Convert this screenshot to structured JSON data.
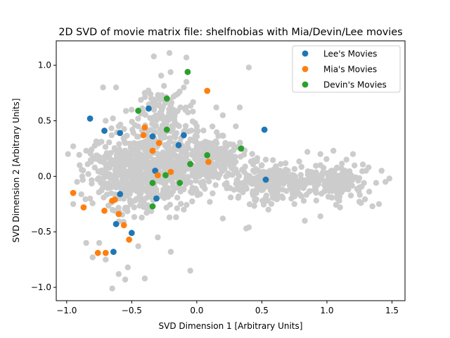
{
  "chart_data": {
    "type": "scatter",
    "title": "2D SVD of movie matrix file: shelfnobias with Mia/Devin/Lee movies",
    "xlabel": "SVD Dimension 1 [Arbitrary Units]",
    "ylabel": "SVD Dimension 2 [Arbitrary Units]",
    "xlim": [
      -1.08,
      1.6
    ],
    "ylim": [
      -1.12,
      1.22
    ],
    "xticks": [
      -1.0,
      -0.5,
      0.0,
      0.5,
      1.0,
      1.5
    ],
    "xtick_labels": [
      "−1.0",
      "−0.5",
      "0.0",
      "0.5",
      "1.0",
      "1.5"
    ],
    "yticks": [
      -1.0,
      -0.5,
      0.0,
      0.5,
      1.0
    ],
    "ytick_labels": [
      "−1.0",
      "−0.5",
      "0.0",
      "0.5",
      "1.0"
    ],
    "grid": false,
    "legend_position": "top-right",
    "background_series": {
      "color": "#cccccc",
      "count": 1500,
      "points": [
        [
          -0.33,
          1.08
        ],
        [
          -0.21,
          1.11
        ],
        [
          -0.08,
          1.07
        ],
        [
          -0.62,
          0.8
        ],
        [
          -0.72,
          0.8
        ],
        [
          -0.1,
          0.8
        ],
        [
          -0.08,
          0.85
        ],
        [
          -0.35,
          0.7
        ],
        [
          -0.95,
          0.27
        ],
        [
          -0.99,
          0.2
        ],
        [
          -0.85,
          0.23
        ],
        [
          0.4,
          0.98
        ],
        [
          0.33,
          0.62
        ],
        [
          0.2,
          0.55
        ],
        [
          0.15,
          0.62
        ],
        [
          0.85,
          0.22
        ],
        [
          0.95,
          0.2
        ],
        [
          1.05,
          0.23
        ],
        [
          1.2,
          0.2
        ],
        [
          1.3,
          0.05
        ],
        [
          1.42,
          0.05
        ],
        [
          1.45,
          -0.05
        ],
        [
          1.4,
          -0.25
        ],
        [
          1.35,
          -0.27
        ],
        [
          1.1,
          -0.28
        ],
        [
          0.95,
          -0.36
        ],
        [
          0.83,
          -0.4
        ],
        [
          0.55,
          -0.3
        ],
        [
          0.4,
          -0.46
        ],
        [
          0.38,
          -0.47
        ],
        [
          0.2,
          -0.38
        ],
        [
          -0.05,
          -0.85
        ],
        [
          -0.4,
          -0.92
        ],
        [
          -0.55,
          -0.93
        ],
        [
          -0.6,
          -0.88
        ],
        [
          -0.65,
          -1.01
        ],
        [
          -0.7,
          -0.75
        ],
        [
          -0.75,
          -0.6
        ],
        [
          -0.8,
          -0.73
        ],
        [
          -0.85,
          -0.6
        ],
        [
          -0.82,
          -0.2
        ],
        [
          -0.92,
          -0.05
        ],
        [
          -0.95,
          -0.25
        ],
        [
          -0.9,
          0.1
        ],
        [
          -0.88,
          0.0
        ],
        [
          -0.75,
          0.15
        ],
        [
          -0.6,
          0.45
        ],
        [
          -0.5,
          0.6
        ],
        [
          -0.4,
          0.75
        ],
        [
          -0.18,
          0.6
        ],
        [
          0.0,
          0.45
        ],
        [
          0.15,
          0.3
        ],
        [
          0.25,
          0.2
        ],
        [
          0.5,
          0.1
        ],
        [
          0.7,
          0.05
        ],
        [
          0.9,
          0.0
        ],
        [
          1.1,
          -0.05
        ],
        [
          1.25,
          -0.1
        ],
        [
          -0.2,
          -0.68
        ],
        [
          -0.3,
          -0.55
        ],
        [
          -0.45,
          -0.63
        ],
        [
          -0.53,
          -0.82
        ],
        [
          0.1,
          -0.23
        ],
        [
          -0.1,
          -0.3
        ],
        [
          0.3,
          0.45
        ],
        [
          0.22,
          0.3
        ],
        [
          0.05,
          0.25
        ],
        [
          -0.25,
          0.4
        ],
        [
          -0.55,
          0.3
        ],
        [
          -0.7,
          0.5
        ],
        [
          0.6,
          -0.15
        ],
        [
          0.75,
          -0.25
        ],
        [
          0.95,
          0.1
        ],
        [
          1.15,
          0.15
        ],
        [
          1.32,
          0.08
        ],
        [
          1.48,
          -0.02
        ]
      ]
    },
    "series": [
      {
        "name": "Lee's Movies",
        "color": "#1f77b4",
        "points": [
          [
            -0.82,
            0.52
          ],
          [
            -0.71,
            0.41
          ],
          [
            -0.59,
            0.39
          ],
          [
            -0.37,
            0.61
          ],
          [
            -0.34,
            0.36
          ],
          [
            -0.1,
            0.37
          ],
          [
            -0.14,
            0.28
          ],
          [
            -0.32,
            0.05
          ],
          [
            -0.31,
            -0.2
          ],
          [
            -0.59,
            -0.16
          ],
          [
            -0.62,
            -0.43
          ],
          [
            -0.5,
            -0.51
          ],
          [
            -0.64,
            -0.68
          ],
          [
            0.52,
            0.42
          ],
          [
            0.53,
            -0.03
          ]
        ]
      },
      {
        "name": "Mia's Movies",
        "color": "#ff7f0e",
        "points": [
          [
            -0.95,
            -0.15
          ],
          [
            -0.87,
            -0.28
          ],
          [
            -0.71,
            -0.31
          ],
          [
            -0.65,
            -0.22
          ],
          [
            -0.63,
            -0.21
          ],
          [
            -0.6,
            -0.34
          ],
          [
            -0.56,
            -0.44
          ],
          [
            -0.52,
            -0.57
          ],
          [
            -0.76,
            -0.69
          ],
          [
            -0.7,
            -0.69
          ],
          [
            -0.4,
            0.44
          ],
          [
            -0.41,
            0.37
          ],
          [
            -0.34,
            0.23
          ],
          [
            -0.29,
            0.3
          ],
          [
            -0.3,
            0.01
          ],
          [
            -0.2,
            0.04
          ],
          [
            0.08,
            0.77
          ],
          [
            0.09,
            0.13
          ]
        ]
      },
      {
        "name": "Devin's Movies",
        "color": "#2ca02c",
        "points": [
          [
            -0.07,
            0.94
          ],
          [
            -0.23,
            0.7
          ],
          [
            -0.45,
            0.59
          ],
          [
            -0.23,
            0.42
          ],
          [
            -0.34,
            -0.06
          ],
          [
            -0.24,
            0.01
          ],
          [
            -0.13,
            -0.06
          ],
          [
            -0.05,
            0.11
          ],
          [
            0.08,
            0.19
          ],
          [
            0.34,
            0.25
          ],
          [
            -0.34,
            -0.27
          ]
        ]
      }
    ]
  }
}
